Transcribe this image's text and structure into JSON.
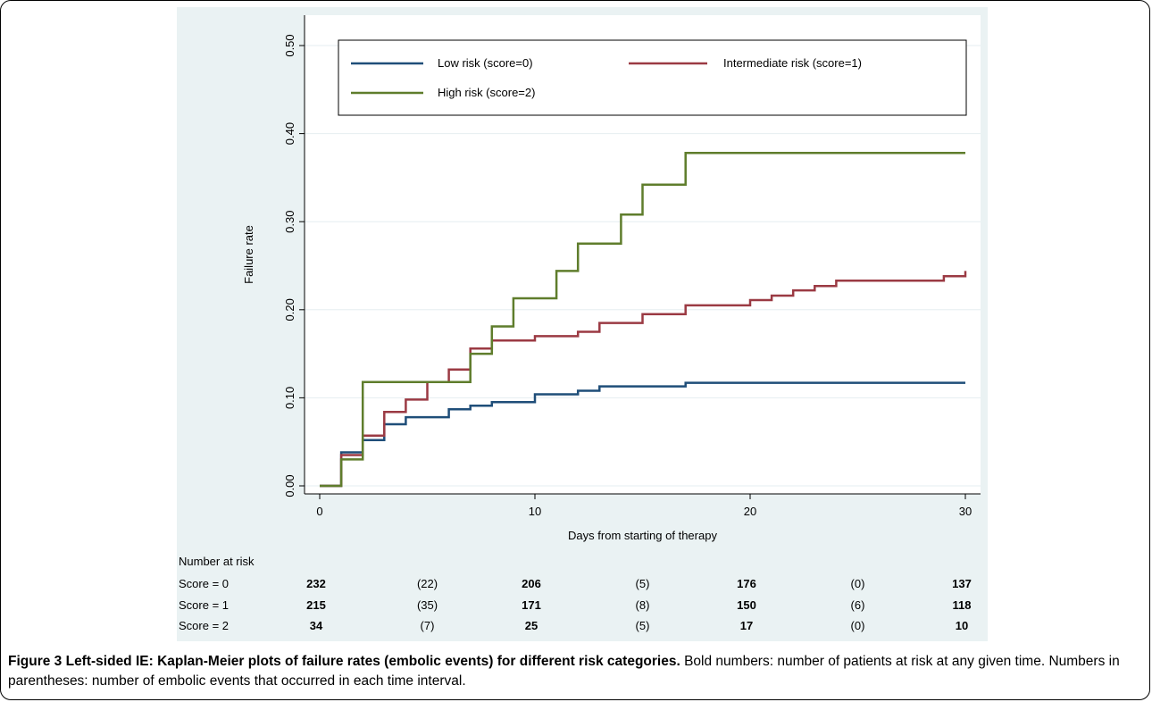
{
  "chart_data": {
    "type": "line",
    "step": true,
    "xlabel": "Days from starting of therapy",
    "ylabel": "Failure rate",
    "xlim": [
      0,
      30
    ],
    "ylim": [
      0,
      0.5
    ],
    "xticks": [
      0,
      10,
      20,
      30
    ],
    "xtick_labels": [
      "0",
      "10",
      "20",
      "30"
    ],
    "yticks": [
      0,
      0.1,
      0.2,
      0.3,
      0.4,
      0.5
    ],
    "ytick_labels": [
      "0.00",
      "0.10",
      "0.20",
      "0.30",
      "0.40",
      "0.50"
    ],
    "grid": "horizontal",
    "legend": "top",
    "series": [
      {
        "name": "Low risk (score=0)",
        "color": "#1f4e79",
        "points": [
          [
            0,
            0
          ],
          [
            1,
            0
          ],
          [
            1,
            0.038
          ],
          [
            2,
            0.038
          ],
          [
            2,
            0.052
          ],
          [
            3,
            0.052
          ],
          [
            3,
            0.07
          ],
          [
            4,
            0.07
          ],
          [
            4,
            0.078
          ],
          [
            6,
            0.078
          ],
          [
            6,
            0.087
          ],
          [
            7,
            0.087
          ],
          [
            7,
            0.091
          ],
          [
            8,
            0.091
          ],
          [
            8,
            0.095
          ],
          [
            10,
            0.095
          ],
          [
            10,
            0.104
          ],
          [
            12,
            0.104
          ],
          [
            12,
            0.108
          ],
          [
            13,
            0.108
          ],
          [
            13,
            0.113
          ],
          [
            17,
            0.113
          ],
          [
            17,
            0.117
          ],
          [
            30,
            0.117
          ]
        ]
      },
      {
        "name": "Intermediate risk (score=1)",
        "color": "#9b3a43",
        "points": [
          [
            0,
            0
          ],
          [
            1,
            0
          ],
          [
            1,
            0.035
          ],
          [
            2,
            0.035
          ],
          [
            2,
            0.057
          ],
          [
            3,
            0.057
          ],
          [
            3,
            0.084
          ],
          [
            4,
            0.084
          ],
          [
            4,
            0.098
          ],
          [
            5,
            0.098
          ],
          [
            5,
            0.118
          ],
          [
            6,
            0.118
          ],
          [
            6,
            0.132
          ],
          [
            7,
            0.132
          ],
          [
            7,
            0.156
          ],
          [
            8,
            0.156
          ],
          [
            8,
            0.165
          ],
          [
            10,
            0.165
          ],
          [
            10,
            0.17
          ],
          [
            12,
            0.17
          ],
          [
            12,
            0.175
          ],
          [
            13,
            0.175
          ],
          [
            13,
            0.185
          ],
          [
            15,
            0.185
          ],
          [
            15,
            0.195
          ],
          [
            17,
            0.195
          ],
          [
            17,
            0.205
          ],
          [
            20,
            0.205
          ],
          [
            20,
            0.211
          ],
          [
            21,
            0.211
          ],
          [
            21,
            0.216
          ],
          [
            22,
            0.216
          ],
          [
            22,
            0.222
          ],
          [
            23,
            0.222
          ],
          [
            23,
            0.227
          ],
          [
            24,
            0.227
          ],
          [
            24,
            0.233
          ],
          [
            29,
            0.233
          ],
          [
            29,
            0.238
          ],
          [
            30,
            0.238
          ],
          [
            30,
            0.244
          ]
        ]
      },
      {
        "name": "High risk (score=2)",
        "color": "#5f7d2c",
        "points": [
          [
            0,
            0
          ],
          [
            1,
            0
          ],
          [
            1,
            0.03
          ],
          [
            2,
            0.03
          ],
          [
            2,
            0.118
          ],
          [
            7,
            0.118
          ],
          [
            7,
            0.15
          ],
          [
            8,
            0.15
          ],
          [
            8,
            0.181
          ],
          [
            9,
            0.181
          ],
          [
            9,
            0.213
          ],
          [
            11,
            0.213
          ],
          [
            11,
            0.244
          ],
          [
            12,
            0.244
          ],
          [
            12,
            0.275
          ],
          [
            14,
            0.275
          ],
          [
            14,
            0.308
          ],
          [
            15,
            0.308
          ],
          [
            15,
            0.342
          ],
          [
            17,
            0.342
          ],
          [
            17,
            0.378
          ],
          [
            30,
            0.378
          ]
        ]
      }
    ]
  },
  "risk_table": {
    "title": "Number at risk",
    "rows": [
      {
        "label": "Score = 0",
        "at_risk": [
          "232",
          "206",
          "176",
          "137"
        ],
        "events": [
          "(22)",
          "(5)",
          "(0)"
        ]
      },
      {
        "label": "Score = 1",
        "at_risk": [
          "215",
          "171",
          "150",
          "118"
        ],
        "events": [
          "(35)",
          "(8)",
          "(6)"
        ]
      },
      {
        "label": "Score = 2",
        "at_risk": [
          "34",
          "25",
          "17",
          "10"
        ],
        "events": [
          "(7)",
          "(5)",
          "(0)"
        ]
      }
    ]
  },
  "caption": {
    "bold": "Figure 3 Left-sided IE: Kaplan-Meier plots of failure rates (embolic events) for different risk categories.",
    "text": " Bold numbers: number of patients at risk at any given time. Numbers in parentheses: number of embolic events that occurred in each time interval."
  }
}
